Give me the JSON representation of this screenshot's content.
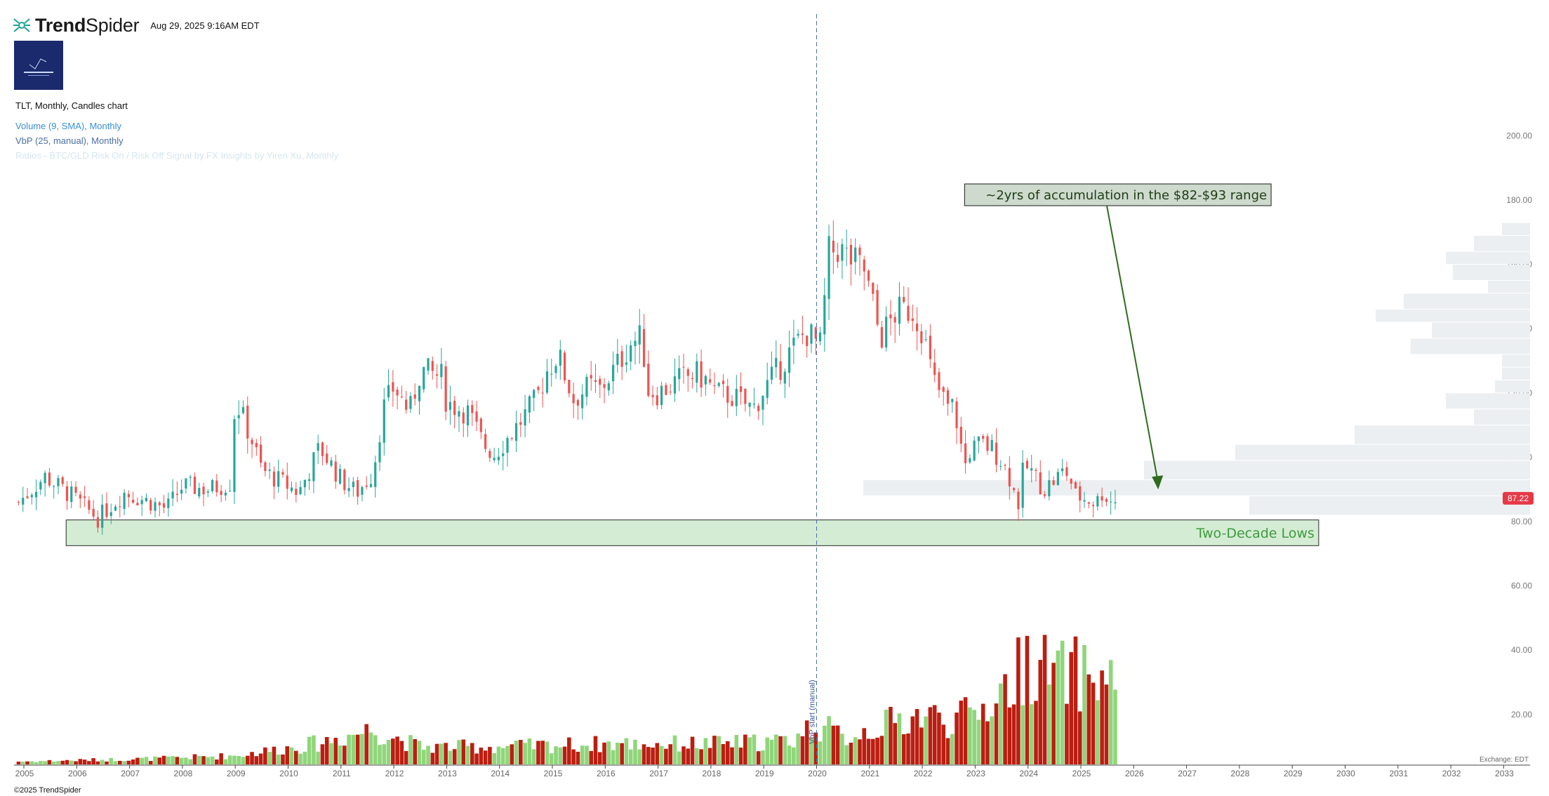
{
  "header": {
    "brand_prefix": "Trend",
    "brand_suffix": "Spider",
    "timestamp": "Aug 29, 2025 9:16AM EDT"
  },
  "legend": {
    "title": "TLT, Monthly, Candles chart",
    "volume": "Volume (9, SMA), Monthly",
    "vbp": "VbP (25, manual), Monthly",
    "faded": "Ratios - BTC/GLD Risk On / Risk Off Signal by FX Insights by Yiren Xu, Monthly"
  },
  "footer": {
    "copyright": "©2025 TrendSpider",
    "exchange": "Exchange: EDT"
  },
  "colors": {
    "up": "#26a69a",
    "down": "#ef5350",
    "vol_up": "#8fd67a",
    "vol_down": "#bb1e10",
    "vbp": "#eceff1",
    "zone_fill": "#d4ecd4",
    "zone_text": "#3f9a3f",
    "arrow": "#2e6b1e",
    "marker_line": "#4a6fa5"
  },
  "chart_data": {
    "type": "candlestick",
    "title": "TLT, Monthly, Candles chart",
    "x_ticks": [
      "2005",
      "2006",
      "2007",
      "2008",
      "2009",
      "2010",
      "2011",
      "2012",
      "2013",
      "2014",
      "2015",
      "2016",
      "2017",
      "2018",
      "2019",
      "2020",
      "2021",
      "2022",
      "2023",
      "2024",
      "2025",
      "2026",
      "2027",
      "2028",
      "2029",
      "2030",
      "2031",
      "2032",
      "2033"
    ],
    "y_ticks": [
      "20.00",
      "40.00",
      "60.00",
      "80.00",
      "100.00",
      "120.00",
      "140.00",
      "160.00",
      "180.00",
      "200.00"
    ],
    "price_range": [
      -3,
      208
    ],
    "last_price": "87.22",
    "monthly_close_anchors": [
      [
        2004.9,
        86
      ],
      [
        2005.4,
        94
      ],
      [
        2005.9,
        88
      ],
      [
        2006.4,
        81
      ],
      [
        2006.9,
        89
      ],
      [
        2007.4,
        86
      ],
      [
        2007.7,
        84
      ],
      [
        2008.0,
        91
      ],
      [
        2008.5,
        90
      ],
      [
        2008.9,
        92
      ],
      [
        2009.0,
        118
      ],
      [
        2009.3,
        106
      ],
      [
        2009.5,
        96
      ],
      [
        2009.9,
        92
      ],
      [
        2010.2,
        89
      ],
      [
        2010.6,
        103
      ],
      [
        2011.0,
        93
      ],
      [
        2011.3,
        89
      ],
      [
        2011.6,
        95
      ],
      [
        2011.8,
        115
      ],
      [
        2012.0,
        122
      ],
      [
        2012.3,
        114
      ],
      [
        2012.5,
        127
      ],
      [
        2012.9,
        125
      ],
      [
        2013.0,
        117
      ],
      [
        2013.4,
        114
      ],
      [
        2013.7,
        104
      ],
      [
        2013.9,
        101
      ],
      [
        2014.3,
        109
      ],
      [
        2014.7,
        118
      ],
      [
        2014.9,
        127
      ],
      [
        2015.1,
        132
      ],
      [
        2015.4,
        118
      ],
      [
        2015.7,
        122
      ],
      [
        2015.9,
        121
      ],
      [
        2016.2,
        128
      ],
      [
        2016.5,
        136
      ],
      [
        2016.7,
        137
      ],
      [
        2016.8,
        121
      ],
      [
        2017.0,
        120
      ],
      [
        2017.4,
        124
      ],
      [
        2017.7,
        126
      ],
      [
        2017.9,
        124
      ],
      [
        2018.1,
        120
      ],
      [
        2018.4,
        119
      ],
      [
        2018.8,
        115
      ],
      [
        2019.0,
        121
      ],
      [
        2019.3,
        128
      ],
      [
        2019.6,
        135
      ],
      [
        2019.8,
        139
      ],
      [
        2020.1,
        134
      ],
      [
        2020.2,
        163
      ],
      [
        2020.4,
        165
      ],
      [
        2020.6,
        162
      ],
      [
        2020.9,
        158
      ],
      [
        2021.1,
        145
      ],
      [
        2021.2,
        137
      ],
      [
        2021.5,
        145
      ],
      [
        2021.8,
        146
      ],
      [
        2022.0,
        140
      ],
      [
        2022.2,
        124
      ],
      [
        2022.5,
        115
      ],
      [
        2022.6,
        116
      ],
      [
        2022.8,
        97
      ],
      [
        2022.9,
        102
      ],
      [
        2023.1,
        104
      ],
      [
        2023.3,
        103
      ],
      [
        2023.5,
        99
      ],
      [
        2023.7,
        92
      ],
      [
        2023.8,
        84
      ],
      [
        2023.9,
        95
      ],
      [
        2024.0,
        97
      ],
      [
        2024.3,
        90
      ],
      [
        2024.5,
        93
      ],
      [
        2024.7,
        96
      ],
      [
        2024.8,
        93
      ],
      [
        2024.9,
        88
      ],
      [
        2025.1,
        87
      ],
      [
        2025.3,
        86
      ],
      [
        2025.4,
        89
      ],
      [
        2025.6,
        86
      ],
      [
        2025.66,
        87
      ]
    ],
    "volume_range": [
      0,
      45
    ],
    "volume_anchors": [
      [
        2005.0,
        1
      ],
      [
        2007.5,
        2
      ],
      [
        2009.0,
        3
      ],
      [
        2010.5,
        7
      ],
      [
        2011.6,
        12
      ],
      [
        2012.5,
        6
      ],
      [
        2014.0,
        6
      ],
      [
        2016.0,
        7
      ],
      [
        2018.0,
        7
      ],
      [
        2019.5,
        8
      ],
      [
        2020.0,
        14
      ],
      [
        2020.5,
        9
      ],
      [
        2021.0,
        12
      ],
      [
        2022.0,
        17
      ],
      [
        2022.5,
        15
      ],
      [
        2023.0,
        17
      ],
      [
        2023.7,
        28
      ],
      [
        2024.0,
        36
      ],
      [
        2024.5,
        30
      ],
      [
        2025.0,
        31
      ],
      [
        2025.6,
        28
      ]
    ],
    "vbp_levels": [
      {
        "price_low": 82,
        "price_high": 88,
        "volume": 0.4
      },
      {
        "price_low": 88,
        "price_high": 93,
        "volume": 0.95
      },
      {
        "price_low": 93,
        "price_high": 99,
        "volume": 0.55
      },
      {
        "price_low": 99,
        "price_high": 104,
        "volume": 0.42
      },
      {
        "price_low": 104,
        "price_high": 110,
        "volume": 0.25
      },
      {
        "price_low": 110,
        "price_high": 115,
        "volume": 0.08
      },
      {
        "price_low": 115,
        "price_high": 120,
        "volume": 0.12
      },
      {
        "price_low": 120,
        "price_high": 124,
        "volume": 0.05
      },
      {
        "price_low": 124,
        "price_high": 128,
        "volume": 0.04
      },
      {
        "price_low": 128,
        "price_high": 132,
        "volume": 0.04
      },
      {
        "price_low": 132,
        "price_high": 137,
        "volume": 0.17
      },
      {
        "price_low": 137,
        "price_high": 142,
        "volume": 0.14
      },
      {
        "price_low": 142,
        "price_high": 146,
        "volume": 0.22
      },
      {
        "price_low": 146,
        "price_high": 151,
        "volume": 0.18
      },
      {
        "price_low": 151,
        "price_high": 155,
        "volume": 0.06
      },
      {
        "price_low": 155,
        "price_high": 160,
        "volume": 0.11
      },
      {
        "price_low": 160,
        "price_high": 164,
        "volume": 0.12
      },
      {
        "price_low": 164,
        "price_high": 169,
        "volume": 0.08
      },
      {
        "price_low": 169,
        "price_high": 173,
        "volume": 0.04
      }
    ],
    "marker": {
      "date": 2020.0,
      "label": "VbP start (manual)"
    },
    "zone": {
      "label": "Two-Decade Lows",
      "price_low": 72.5,
      "price_high": 80.5,
      "x_from": 2005.8,
      "x_to": 2029.5
    },
    "annotation": {
      "text": "~2yrs of accumulation in the $82-$93 range",
      "x_from": 2022.8,
      "x_to": 2028.6,
      "price": 203,
      "arrow_to_x": 2026.45,
      "arrow_to_price": 90
    }
  }
}
